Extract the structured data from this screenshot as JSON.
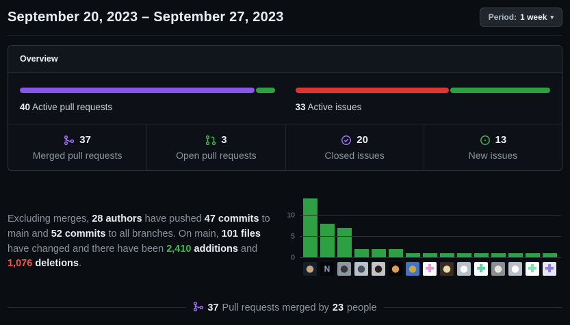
{
  "page": {
    "title": "September 20, 2023 – September 27, 2023",
    "period_button": {
      "prefix": "Period:",
      "value": "1 week"
    }
  },
  "colors": {
    "background": "#0d1117",
    "border": "#30363d",
    "text_primary": "#e6edf3",
    "text_secondary": "#8b949e",
    "purple": "#a371f7",
    "progress_purple": "#8957e5",
    "progress_green": "#2ea043",
    "progress_red": "#da3633",
    "green_text": "#3fb950",
    "red_text": "#f85149",
    "chart_bar_green": "#2ea043"
  },
  "overview": {
    "header": "Overview",
    "pull_bar": {
      "count_label": "40",
      "text_label": "Active pull requests",
      "merged": 37,
      "open": 3,
      "merged_color": "#8957e5",
      "open_color": "#2ea043"
    },
    "issue_bar": {
      "count_label": "33",
      "text_label": "Active issues",
      "closed": 20,
      "new": 13,
      "closed_color": "#da3633",
      "new_color": "#2ea043"
    },
    "stats": [
      {
        "icon": "git-merge-icon",
        "color": "#a371f7",
        "value": "37",
        "label": "Merged pull requests"
      },
      {
        "icon": "git-pull-request-icon",
        "color": "#3fb950",
        "value": "3",
        "label": "Open pull requests"
      },
      {
        "icon": "issue-closed-icon",
        "color": "#a371f7",
        "value": "20",
        "label": "Closed issues"
      },
      {
        "icon": "issue-opened-icon",
        "color": "#3fb950",
        "value": "13",
        "label": "New issues"
      }
    ]
  },
  "summary": {
    "parts": [
      {
        "t": "Excluding merges, ",
        "c": "muted"
      },
      {
        "t": "28 authors",
        "c": "strong"
      },
      {
        "t": " have pushed ",
        "c": "muted"
      },
      {
        "t": "47 commits",
        "c": "strong"
      },
      {
        "t": " to main and ",
        "c": "muted"
      },
      {
        "t": "52 commits",
        "c": "strong"
      },
      {
        "t": " to all branches. On main, ",
        "c": "muted"
      },
      {
        "t": "101 files",
        "c": "strong"
      },
      {
        "t": " have changed and there have been ",
        "c": "muted"
      },
      {
        "t": "2,410",
        "c": "green"
      },
      {
        "t": " ",
        "c": "muted"
      },
      {
        "t": "additions",
        "c": "strong"
      },
      {
        "t": " and ",
        "c": "muted"
      },
      {
        "t": "1,076",
        "c": "red"
      },
      {
        "t": " ",
        "c": "muted"
      },
      {
        "t": "deletions",
        "c": "strong"
      },
      {
        "t": ".",
        "c": "muted"
      }
    ]
  },
  "chart_data": {
    "type": "bar",
    "title": "",
    "xlabel": "",
    "ylabel": "",
    "categories": [
      "photo-person-dark-teal",
      "letter-N-logo-dark",
      "photo-person-gray-sky",
      "photo-person-hood-blue",
      "photo-woman-dark-hair",
      "photo-night-moon",
      "photo-person-colorful-hat",
      "identicon-pink",
      "photo-golden-glow",
      "octocat-default-gray",
      "identicon-mint-T",
      "photo-woman-white-shirt",
      "octocat-default-gray",
      "identicon-mint-blocks",
      "identicon-purple-blocks"
    ],
    "values": [
      14,
      8,
      7,
      2,
      2,
      2,
      1,
      1,
      1,
      1,
      1,
      1,
      1,
      1,
      1
    ],
    "yticks": [
      0,
      5,
      10
    ],
    "ylim": [
      0,
      15
    ],
    "grid": "horizontal",
    "legend": "none",
    "bar_color": "#2ea043",
    "avatars": [
      {
        "kind": "photo",
        "bg": "#14212b",
        "fg": "#caa27e",
        "glyph": ""
      },
      {
        "kind": "letter",
        "bg": "#05070b",
        "fg": "#8fa0c0",
        "glyph": "N"
      },
      {
        "kind": "photo",
        "bg": "#8e979f",
        "fg": "#33383d",
        "glyph": ""
      },
      {
        "kind": "photo",
        "bg": "#b9c0ca",
        "fg": "#46505e",
        "glyph": ""
      },
      {
        "kind": "photo",
        "bg": "#c4c4c4",
        "fg": "#23201f",
        "glyph": ""
      },
      {
        "kind": "photo",
        "bg": "#060606",
        "fg": "#d8a05a",
        "glyph": ""
      },
      {
        "kind": "photo",
        "bg": "#3f74c9",
        "fg": "#c9a93e",
        "glyph": ""
      },
      {
        "kind": "identicon",
        "bg": "#ffffff",
        "fg": "#e39ee3",
        "glyph": ""
      },
      {
        "kind": "photo",
        "bg": "#3a2c20",
        "fg": "#e8d9a8",
        "glyph": ""
      },
      {
        "kind": "octocat",
        "bg": "#b7bfc8",
        "fg": "#ffffff",
        "glyph": ""
      },
      {
        "kind": "identicon",
        "bg": "#ffffff",
        "fg": "#63d0a5",
        "glyph": ""
      },
      {
        "kind": "photo",
        "bg": "#8a8f94",
        "fg": "#e8e6e2",
        "glyph": ""
      },
      {
        "kind": "octocat",
        "bg": "#b7bfc8",
        "fg": "#ffffff",
        "glyph": ""
      },
      {
        "kind": "identicon",
        "bg": "#ffffff",
        "fg": "#7fe3b4",
        "glyph": ""
      },
      {
        "kind": "identicon",
        "bg": "#e8e6f5",
        "fg": "#8f7ee0",
        "glyph": ""
      }
    ]
  },
  "merged_by": {
    "count": "37",
    "middle_text": "Pull requests merged by",
    "people_count": "23",
    "people_text": "people"
  }
}
